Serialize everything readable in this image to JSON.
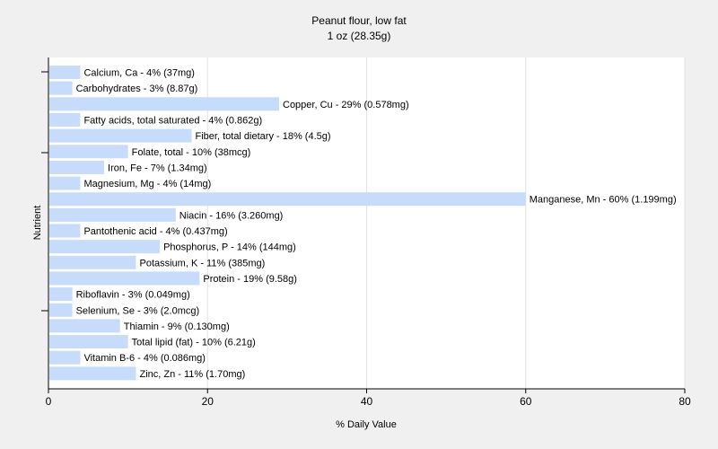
{
  "chart_data": {
    "type": "bar",
    "orientation": "horizontal",
    "title": "Peanut flour, low fat",
    "subtitle": "1 oz (28.35g)",
    "xlabel": "% Daily Value",
    "ylabel": "Nutrient",
    "xlim": [
      0,
      80
    ],
    "xticks": [
      0,
      20,
      40,
      60,
      80
    ],
    "grid": true,
    "bar_color": "#c7dcfa",
    "categories": [
      "Calcium, Ca",
      "Carbohydrates",
      "Copper, Cu",
      "Fatty acids, total saturated",
      "Fiber, total dietary",
      "Folate, total",
      "Iron, Fe",
      "Magnesium, Mg",
      "Manganese, Mn",
      "Niacin",
      "Pantothenic acid",
      "Phosphorus, P",
      "Potassium, K",
      "Protein",
      "Riboflavin",
      "Selenium, Se",
      "Thiamin",
      "Total lipid (fat)",
      "Vitamin B-6",
      "Zinc, Zn"
    ],
    "values": [
      4,
      3,
      29,
      4,
      18,
      10,
      7,
      4,
      60,
      16,
      4,
      14,
      11,
      19,
      3,
      3,
      9,
      10,
      4,
      11
    ],
    "labels": [
      "Calcium, Ca - 4% (37mg)",
      "Carbohydrates - 3% (8.87g)",
      "Copper, Cu - 29% (0.578mg)",
      "Fatty acids, total saturated - 4% (0.862g)",
      "Fiber, total dietary - 18% (4.5g)",
      "Folate, total - 10% (38mcg)",
      "Iron, Fe - 7% (1.34mg)",
      "Magnesium, Mg - 4% (14mg)",
      "Manganese, Mn - 60% (1.199mg)",
      "Niacin - 16% (3.260mg)",
      "Pantothenic acid - 4% (0.437mg)",
      "Phosphorus, P - 14% (144mg)",
      "Potassium, K - 11% (385mg)",
      "Protein - 19% (9.58g)",
      "Riboflavin - 3% (0.049mg)",
      "Selenium, Se - 3% (2.0mcg)",
      "Thiamin - 9% (0.130mg)",
      "Total lipid (fat) - 10% (6.21g)",
      "Vitamin B-6 - 4% (0.086mg)",
      "Zinc, Zn - 11% (1.70mg)"
    ]
  }
}
